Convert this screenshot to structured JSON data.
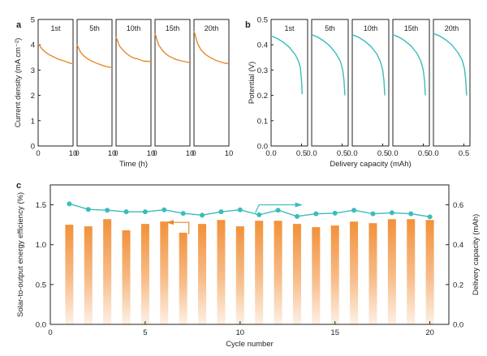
{
  "panels": {
    "a": "a",
    "b": "b",
    "c": "c"
  },
  "colors": {
    "orange": "#e8892f",
    "teal": "#3bbcbc",
    "axis": "#222222"
  },
  "chart_data": [
    {
      "panel": "a",
      "type": "line",
      "xlabel": "Time (h)",
      "ylabel": "Current density (mA cm⁻²)",
      "ylim": [
        0,
        5
      ],
      "yticks": [
        "0",
        "1",
        "2",
        "3",
        "4",
        "5"
      ],
      "xticks": [
        "0",
        "10"
      ],
      "grid": false,
      "series": [
        {
          "name": "1st",
          "x": [
            0,
            1,
            2,
            3,
            4,
            5,
            6,
            7,
            8,
            9,
            10
          ],
          "y": [
            4.05,
            3.85,
            3.72,
            3.62,
            3.55,
            3.48,
            3.42,
            3.38,
            3.33,
            3.28,
            3.25
          ]
        },
        {
          "name": "5th",
          "x": [
            0,
            1,
            2,
            3,
            4,
            5,
            6,
            7,
            8,
            9,
            10
          ],
          "y": [
            4.0,
            3.7,
            3.55,
            3.45,
            3.37,
            3.3,
            3.25,
            3.2,
            3.15,
            3.12,
            3.1
          ]
        },
        {
          "name": "10th",
          "x": [
            0,
            1,
            2,
            3,
            4,
            5,
            6,
            7,
            8,
            9,
            10
          ],
          "y": [
            4.3,
            3.95,
            3.78,
            3.65,
            3.55,
            3.48,
            3.45,
            3.4,
            3.35,
            3.35,
            3.33
          ]
        },
        {
          "name": "15th",
          "x": [
            0,
            1,
            2,
            3,
            4,
            5,
            6,
            7,
            8,
            9,
            10
          ],
          "y": [
            4.45,
            4.0,
            3.8,
            3.65,
            3.55,
            3.48,
            3.42,
            3.38,
            3.35,
            3.32,
            3.3
          ]
        },
        {
          "name": "20th",
          "x": [
            0,
            1,
            2,
            3,
            4,
            5,
            6,
            7,
            8,
            9,
            10
          ],
          "y": [
            4.55,
            4.05,
            3.8,
            3.65,
            3.55,
            3.47,
            3.4,
            3.35,
            3.3,
            3.27,
            3.25
          ]
        }
      ]
    },
    {
      "panel": "b",
      "type": "line",
      "xlabel": "Delivery capacity (mAh)",
      "ylabel": "Potential (V)",
      "ylim": [
        0,
        0.5
      ],
      "yticks": [
        "0.0",
        "0.1",
        "0.2",
        "0.3",
        "0.4",
        "0.5"
      ],
      "xticks": [
        "0.0",
        "0.5"
      ],
      "xlim": [
        0,
        0.6
      ],
      "grid": false,
      "series": [
        {
          "name": "1st",
          "x": [
            0,
            0.1,
            0.2,
            0.3,
            0.4,
            0.45,
            0.48,
            0.5,
            0.51
          ],
          "y": [
            0.435,
            0.425,
            0.41,
            0.39,
            0.36,
            0.335,
            0.31,
            0.26,
            0.205
          ]
        },
        {
          "name": "5th",
          "x": [
            0,
            0.1,
            0.2,
            0.3,
            0.4,
            0.47,
            0.51,
            0.53,
            0.545
          ],
          "y": [
            0.44,
            0.43,
            0.415,
            0.395,
            0.365,
            0.335,
            0.3,
            0.26,
            0.2
          ]
        },
        {
          "name": "10th",
          "x": [
            0,
            0.1,
            0.2,
            0.3,
            0.4,
            0.46,
            0.5,
            0.52,
            0.535
          ],
          "y": [
            0.44,
            0.43,
            0.415,
            0.395,
            0.365,
            0.335,
            0.3,
            0.26,
            0.2
          ]
        },
        {
          "name": "15th",
          "x": [
            0,
            0.1,
            0.2,
            0.3,
            0.4,
            0.46,
            0.5,
            0.52,
            0.535
          ],
          "y": [
            0.44,
            0.43,
            0.415,
            0.395,
            0.365,
            0.335,
            0.3,
            0.26,
            0.2
          ]
        },
        {
          "name": "20th",
          "x": [
            0,
            0.1,
            0.2,
            0.3,
            0.4,
            0.47,
            0.51,
            0.53,
            0.545
          ],
          "y": [
            0.445,
            0.435,
            0.42,
            0.4,
            0.37,
            0.34,
            0.305,
            0.26,
            0.2
          ]
        }
      ]
    },
    {
      "panel": "c",
      "type": "bar",
      "xlabel": "Cycle number",
      "ylabel": "Solar-to-output energy efficiency (%)",
      "y2label": "Delivery capacity (mAh)",
      "xlim": [
        0,
        21
      ],
      "ylim": [
        0,
        1.75
      ],
      "y2lim": [
        0,
        0.7
      ],
      "xticks": [
        "0",
        "5",
        "10",
        "15",
        "20"
      ],
      "yticks": [
        "0.0",
        "0.5",
        "1.0",
        "1.5"
      ],
      "y2ticks": [
        "0.0",
        "0.2",
        "0.4",
        "0.6"
      ],
      "grid": false,
      "categories": [
        1,
        2,
        3,
        4,
        5,
        6,
        7,
        8,
        9,
        10,
        11,
        12,
        13,
        14,
        15,
        16,
        17,
        18,
        19,
        20
      ],
      "series": [
        {
          "type": "bar",
          "axis": "left",
          "values": [
            1.25,
            1.23,
            1.32,
            1.18,
            1.26,
            1.29,
            1.15,
            1.26,
            1.31,
            1.23,
            1.3,
            1.3,
            1.26,
            1.22,
            1.24,
            1.29,
            1.27,
            1.32,
            1.32,
            1.31
          ]
        },
        {
          "type": "line",
          "axis": "right",
          "values": [
            0.605,
            0.577,
            0.573,
            0.565,
            0.565,
            0.575,
            0.557,
            0.548,
            0.565,
            0.575,
            0.55,
            0.573,
            0.542,
            0.555,
            0.558,
            0.573,
            0.555,
            0.56,
            0.555,
            0.54
          ]
        }
      ]
    }
  ]
}
